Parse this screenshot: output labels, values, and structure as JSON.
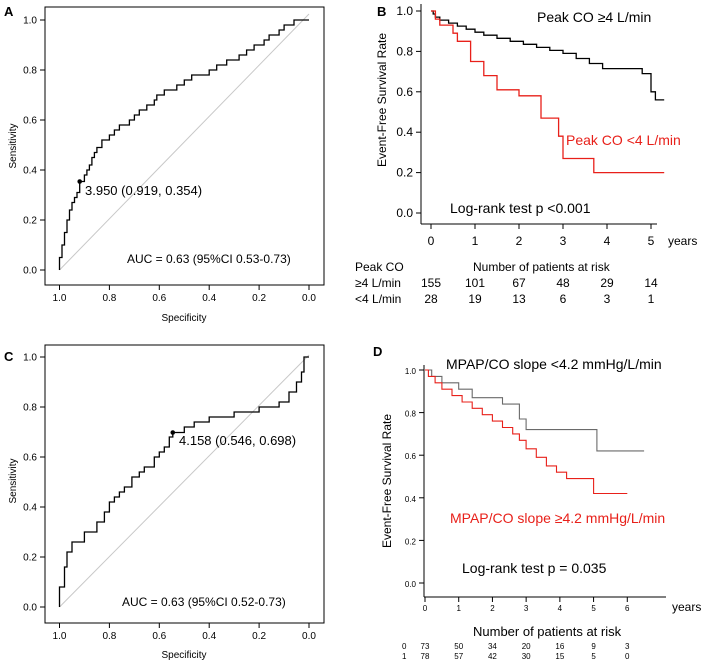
{
  "colors": {
    "black": "#000000",
    "red": "#e8201a",
    "gray": "#c8c8c8"
  },
  "chart_data": [
    {
      "type": "line",
      "panel": "A",
      "title": "",
      "xlabel": "Specificity",
      "ylabel": "Sensitivity",
      "xlim": [
        1.0,
        0.0
      ],
      "ylim": [
        0.0,
        1.0
      ],
      "x_ticks": [
        "1.0",
        "0.8",
        "0.6",
        "0.4",
        "0.2",
        "0.0"
      ],
      "y_ticks": [
        "0.0",
        "0.2",
        "0.4",
        "0.6",
        "0.8",
        "1.0"
      ],
      "roc": {
        "specificity": [
          1.0,
          1.0,
          0.99,
          0.99,
          0.98,
          0.98,
          0.97,
          0.97,
          0.96,
          0.96,
          0.95,
          0.95,
          0.94,
          0.94,
          0.93,
          0.93,
          0.919,
          0.919,
          0.9,
          0.9,
          0.89,
          0.89,
          0.88,
          0.88,
          0.87,
          0.87,
          0.86,
          0.86,
          0.85,
          0.85,
          0.83,
          0.83,
          0.8,
          0.8,
          0.78,
          0.78,
          0.76,
          0.76,
          0.72,
          0.72,
          0.7,
          0.7,
          0.68,
          0.68,
          0.65,
          0.65,
          0.62,
          0.62,
          0.61,
          0.61,
          0.58,
          0.58,
          0.53,
          0.53,
          0.5,
          0.5,
          0.47,
          0.47,
          0.4,
          0.4,
          0.37,
          0.37,
          0.33,
          0.33,
          0.28,
          0.28,
          0.25,
          0.25,
          0.22,
          0.22,
          0.18,
          0.18,
          0.16,
          0.16,
          0.12,
          0.12,
          0.1,
          0.1,
          0.06,
          0.06,
          0.03,
          0.03,
          0.0
        ],
        "sensitivity": [
          0.0,
          0.05,
          0.05,
          0.1,
          0.1,
          0.15,
          0.15,
          0.2,
          0.2,
          0.24,
          0.24,
          0.27,
          0.27,
          0.29,
          0.29,
          0.31,
          0.31,
          0.354,
          0.354,
          0.38,
          0.38,
          0.4,
          0.4,
          0.42,
          0.42,
          0.45,
          0.45,
          0.47,
          0.47,
          0.49,
          0.49,
          0.52,
          0.52,
          0.54,
          0.54,
          0.56,
          0.56,
          0.58,
          0.58,
          0.6,
          0.6,
          0.62,
          0.62,
          0.64,
          0.64,
          0.66,
          0.66,
          0.68,
          0.68,
          0.7,
          0.7,
          0.72,
          0.72,
          0.74,
          0.74,
          0.76,
          0.76,
          0.78,
          0.78,
          0.8,
          0.8,
          0.82,
          0.82,
          0.84,
          0.84,
          0.86,
          0.86,
          0.88,
          0.88,
          0.9,
          0.9,
          0.92,
          0.92,
          0.94,
          0.94,
          0.96,
          0.96,
          0.98,
          0.98,
          1.0,
          1.0,
          1.0,
          1.0
        ]
      },
      "cutoff_point": {
        "specificity": 0.919,
        "sensitivity": 0.354,
        "label": "3.950 (0.919, 0.354)"
      },
      "auc_label": "AUC = 0.63 (95%CI 0.53-0.73)"
    },
    {
      "type": "line",
      "panel": "B",
      "title": "",
      "xlabel": "years",
      "ylabel": "Event-Free Survival Rate",
      "xlim": [
        0,
        5.5
      ],
      "ylim": [
        0.0,
        1.0
      ],
      "x_ticks": [
        "0",
        "1",
        "2",
        "3",
        "4",
        "5"
      ],
      "y_ticks": [
        "0.0",
        "0.2",
        "0.4",
        "0.6",
        "0.8",
        "1.0"
      ],
      "series": [
        {
          "name": "Peak CO ≥4 L/min",
          "color": "#000000",
          "times": [
            0,
            0.05,
            0.05,
            0.1,
            0.1,
            0.2,
            0.2,
            0.4,
            0.4,
            0.6,
            0.6,
            0.8,
            0.8,
            1.0,
            1.0,
            1.2,
            1.2,
            1.5,
            1.5,
            1.8,
            1.8,
            2.1,
            2.1,
            2.4,
            2.4,
            2.7,
            2.7,
            3.0,
            3.0,
            3.3,
            3.3,
            3.6,
            3.6,
            3.9,
            3.9,
            4.8,
            4.8,
            5.0,
            5.0,
            5.1,
            5.1,
            5.3
          ],
          "surv": [
            1.0,
            1.0,
            0.985,
            0.985,
            0.97,
            0.97,
            0.955,
            0.955,
            0.94,
            0.94,
            0.925,
            0.925,
            0.91,
            0.91,
            0.895,
            0.895,
            0.88,
            0.88,
            0.865,
            0.865,
            0.85,
            0.85,
            0.835,
            0.835,
            0.82,
            0.82,
            0.805,
            0.805,
            0.79,
            0.79,
            0.765,
            0.765,
            0.74,
            0.74,
            0.715,
            0.715,
            0.69,
            0.69,
            0.6,
            0.6,
            0.56,
            0.56
          ]
        },
        {
          "name": "Peak CO <4 L/min",
          "color": "#e8201a",
          "times": [
            0,
            0.1,
            0.1,
            0.2,
            0.2,
            0.5,
            0.5,
            0.6,
            0.6,
            0.9,
            0.9,
            1.2,
            1.2,
            1.5,
            1.5,
            2.0,
            2.0,
            2.5,
            2.5,
            2.9,
            2.9,
            3.0,
            3.0,
            3.7,
            3.7,
            5.3
          ],
          "surv": [
            1.0,
            1.0,
            0.96,
            0.96,
            0.93,
            0.93,
            0.89,
            0.89,
            0.85,
            0.85,
            0.75,
            0.75,
            0.68,
            0.68,
            0.61,
            0.61,
            0.58,
            0.58,
            0.47,
            0.47,
            0.38,
            0.38,
            0.27,
            0.27,
            0.2,
            0.2
          ]
        }
      ],
      "legend_black": "Peak CO ≥4 L/min",
      "legend_red": "Peak CO <4 L/min",
      "logrank": "Log-rank test p <0.001",
      "risk_table": {
        "group_header": "Peak CO",
        "header": "Number of patients at risk",
        "rows": [
          {
            "label": "≥4 L/min",
            "values": [
              "155",
              "101",
              "67",
              "48",
              "29",
              "14"
            ]
          },
          {
            "label": "<4 L/min",
            "values": [
              "28",
              "19",
              "13",
              "6",
              "3",
              "1"
            ]
          }
        ]
      }
    },
    {
      "type": "line",
      "panel": "C",
      "title": "",
      "xlabel": "Specificity",
      "ylabel": "Sensitivity",
      "xlim": [
        1.0,
        0.0
      ],
      "ylim": [
        0.0,
        1.0
      ],
      "x_ticks": [
        "1.0",
        "0.8",
        "0.6",
        "0.4",
        "0.2",
        "0.0"
      ],
      "y_ticks": [
        "0.0",
        "0.2",
        "0.4",
        "0.6",
        "0.8",
        "1.0"
      ],
      "roc": {
        "specificity": [
          1.0,
          1.0,
          0.98,
          0.98,
          0.97,
          0.97,
          0.95,
          0.95,
          0.9,
          0.9,
          0.85,
          0.85,
          0.82,
          0.82,
          0.8,
          0.8,
          0.78,
          0.78,
          0.76,
          0.76,
          0.74,
          0.74,
          0.71,
          0.71,
          0.68,
          0.68,
          0.66,
          0.66,
          0.62,
          0.62,
          0.6,
          0.6,
          0.58,
          0.58,
          0.56,
          0.56,
          0.546,
          0.546,
          0.5,
          0.5,
          0.46,
          0.46,
          0.4,
          0.4,
          0.3,
          0.3,
          0.2,
          0.2,
          0.12,
          0.12,
          0.08,
          0.08,
          0.05,
          0.05,
          0.03,
          0.03,
          0.02,
          0.02,
          0.0
        ],
        "sensitivity": [
          0.0,
          0.08,
          0.08,
          0.16,
          0.16,
          0.22,
          0.22,
          0.26,
          0.26,
          0.3,
          0.3,
          0.34,
          0.34,
          0.38,
          0.38,
          0.42,
          0.42,
          0.44,
          0.44,
          0.46,
          0.46,
          0.48,
          0.48,
          0.52,
          0.52,
          0.54,
          0.54,
          0.56,
          0.56,
          0.6,
          0.6,
          0.62,
          0.62,
          0.64,
          0.64,
          0.68,
          0.68,
          0.698,
          0.698,
          0.72,
          0.72,
          0.74,
          0.74,
          0.76,
          0.76,
          0.78,
          0.78,
          0.8,
          0.8,
          0.82,
          0.82,
          0.86,
          0.86,
          0.9,
          0.9,
          0.94,
          0.94,
          1.0,
          1.0
        ]
      },
      "cutoff_point": {
        "specificity": 0.546,
        "sensitivity": 0.698,
        "label": "4.158 (0.546, 0.698)"
      },
      "auc_label": "AUC = 0.63 (95%CI 0.52-0.73)"
    },
    {
      "type": "line",
      "panel": "D",
      "title": "",
      "xlabel": "years",
      "ylabel": "Event-Free Survival Rate",
      "xlim": [
        0,
        7
      ],
      "ylim": [
        0.0,
        1.0
      ],
      "x_ticks": [
        "0",
        "1",
        "2",
        "3",
        "4",
        "5",
        "6"
      ],
      "y_ticks": [
        "0.0",
        "0.2",
        "0.4",
        "0.6",
        "0.8",
        "1.0"
      ],
      "series": [
        {
          "name": "MPAP/CO slope <4.2 mmHg/L/min",
          "color": "#000000",
          "times": [
            0,
            0.2,
            0.2,
            0.5,
            0.5,
            1.0,
            1.0,
            1.4,
            1.4,
            2.3,
            2.3,
            2.8,
            2.8,
            3.0,
            3.0,
            5.1,
            5.1,
            6.5
          ],
          "surv": [
            1.0,
            1.0,
            0.97,
            0.97,
            0.94,
            0.94,
            0.91,
            0.91,
            0.87,
            0.87,
            0.84,
            0.84,
            0.77,
            0.77,
            0.72,
            0.72,
            0.62,
            0.62
          ]
        },
        {
          "name": "MPAP/CO slope ≥4.2 mmHg/L/min",
          "color": "#e8201a",
          "times": [
            0,
            0.1,
            0.1,
            0.3,
            0.3,
            0.5,
            0.5,
            0.8,
            0.8,
            1.1,
            1.1,
            1.4,
            1.4,
            1.7,
            1.7,
            2.0,
            2.0,
            2.3,
            2.3,
            2.6,
            2.6,
            2.8,
            2.8,
            3.0,
            3.0,
            3.3,
            3.3,
            3.6,
            3.6,
            3.9,
            3.9,
            4.2,
            4.2,
            5.0,
            5.0,
            6.0
          ],
          "surv": [
            1.0,
            1.0,
            0.97,
            0.97,
            0.94,
            0.94,
            0.91,
            0.91,
            0.88,
            0.88,
            0.85,
            0.85,
            0.82,
            0.82,
            0.79,
            0.79,
            0.76,
            0.76,
            0.73,
            0.73,
            0.7,
            0.7,
            0.67,
            0.67,
            0.63,
            0.63,
            0.59,
            0.59,
            0.55,
            0.55,
            0.52,
            0.52,
            0.49,
            0.49,
            0.42,
            0.42
          ]
        }
      ],
      "legend_black": "MPAP/CO slope <4.2 mmHg/L/min",
      "legend_red": "MPAP/CO slope ≥4.2 mmHg/L/min",
      "logrank": "Log-rank test p = 0.035",
      "risk_table": {
        "header": "Number of patients at risk",
        "rows": [
          {
            "label": "0",
            "values": [
              "73",
              "50",
              "34",
              "20",
              "16",
              "9",
              "3"
            ]
          },
          {
            "label": "1",
            "values": [
              "78",
              "57",
              "42",
              "30",
              "15",
              "5",
              "0"
            ]
          }
        ]
      }
    }
  ]
}
